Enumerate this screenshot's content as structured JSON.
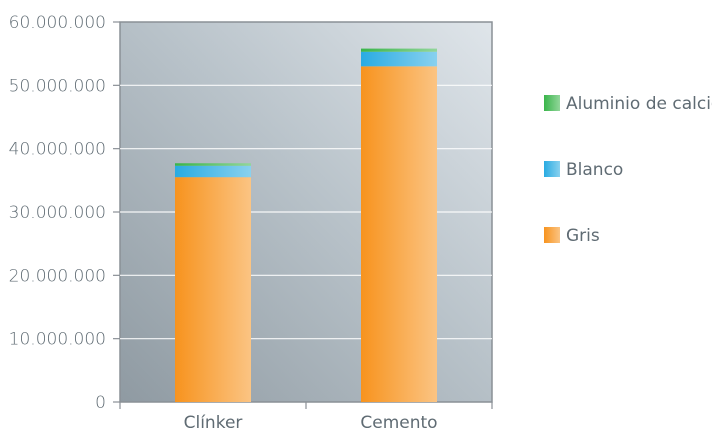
{
  "chart_data": {
    "type": "bar",
    "stacked": true,
    "title": "",
    "xlabel": "",
    "ylabel": "",
    "categories": [
      "Clínker",
      "Cemento"
    ],
    "series": [
      {
        "name": "Gris",
        "values": [
          35500000,
          53000000
        ],
        "color": "#f7931e"
      },
      {
        "name": "Blanco",
        "values": [
          1800000,
          2300000
        ],
        "color": "#29abe2"
      },
      {
        "name": "Aluminio de calcio",
        "values": [
          400000,
          500000
        ],
        "color": "#39b54a"
      }
    ],
    "ylim": [
      0,
      60000000
    ],
    "yticks": [
      "0",
      "10.000.000",
      "20.000.000",
      "30.000.000",
      "40.000.000",
      "50.000.000",
      "60.000.000"
    ],
    "legend_position": "right",
    "legend_order": [
      "Aluminio de calcio",
      "Blanco",
      "Gris"
    ],
    "grid": true
  }
}
